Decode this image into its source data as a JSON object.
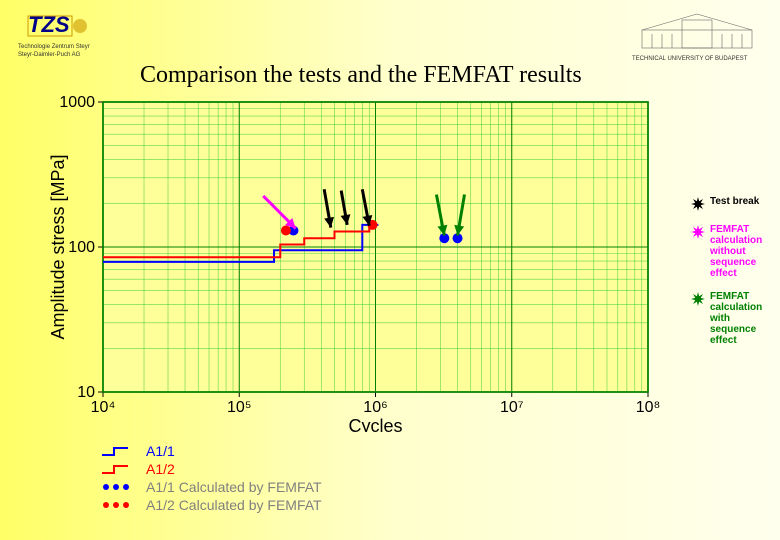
{
  "title": "Comparison the tests and the FEMFAT results",
  "logos": {
    "left_main": "TZS",
    "left_sub": "Technologie Zentrum Steyr\nSteyr-Daimler-Puch AG",
    "right_top": "TECHNICAL UNIVERSITY OF BUDAPEST"
  },
  "chart": {
    "type": "log-log",
    "background": "#ffff99",
    "frame_color": "#008000",
    "xlabel": "Cycles",
    "ylabel": "Amplitude stress [MPa]",
    "label_fontsize": 18,
    "tick_fontsize": 16,
    "xlim": [
      10000,
      100000000
    ],
    "ylim": [
      10,
      1000
    ],
    "xticks": [
      10000,
      100000,
      1000000,
      10000000,
      100000000
    ],
    "xtick_labels": [
      "10⁴",
      "10⁵",
      "10⁶",
      "10⁷",
      "10⁸"
    ],
    "yticks": [
      10,
      100,
      1000
    ],
    "ytick_labels": [
      "10",
      "100",
      "1000"
    ],
    "grid_color": "#33cc33",
    "grid_minor": true,
    "series": {
      "a11": {
        "type": "step-line",
        "color": "#0000ff",
        "width": 2,
        "pts": [
          [
            10000,
            79
          ],
          [
            180000,
            79
          ],
          [
            180000,
            95
          ],
          [
            800000,
            95
          ],
          [
            800000,
            142
          ],
          [
            1050000,
            142
          ]
        ]
      },
      "a12": {
        "type": "step-line",
        "color": "#ff0000",
        "width": 2,
        "pts": [
          [
            10000,
            85
          ],
          [
            200000,
            85
          ],
          [
            200000,
            104
          ],
          [
            300000,
            104
          ],
          [
            300000,
            115
          ],
          [
            500000,
            115
          ],
          [
            500000,
            128
          ],
          [
            900000,
            128
          ],
          [
            900000,
            142
          ],
          [
            1000000,
            142
          ]
        ]
      },
      "a11_calc": {
        "type": "scatter",
        "color": "#0000ff",
        "marker_size": 5,
        "pts": [
          [
            250000,
            130
          ],
          [
            3200000,
            115
          ],
          [
            4000000,
            115
          ]
        ]
      },
      "a12_calc": {
        "type": "scatter",
        "color": "#ff0000",
        "marker_size": 5,
        "pts": [
          [
            220000,
            130
          ],
          [
            950000,
            142
          ]
        ]
      }
    },
    "arrows": [
      {
        "head": [
          260000,
          134
        ],
        "tail": [
          150000,
          225
        ],
        "color": "#ff00ff",
        "width": 3
      },
      {
        "head": [
          470000,
          136
        ],
        "tail": [
          420000,
          250
        ],
        "color": "#000000",
        "width": 3
      },
      {
        "head": [
          620000,
          142
        ],
        "tail": [
          560000,
          245
        ],
        "color": "#000000",
        "width": 3
      },
      {
        "head": [
          900000,
          140
        ],
        "tail": [
          800000,
          250
        ],
        "color": "#000000",
        "width": 3
      },
      {
        "head": [
          3200000,
          120
        ],
        "tail": [
          2800000,
          230
        ],
        "color": "#008000",
        "width": 3
      },
      {
        "head": [
          4000000,
          120
        ],
        "tail": [
          4500000,
          230
        ],
        "color": "#008000",
        "width": 3
      }
    ]
  },
  "side_legend": [
    {
      "label": "Test break",
      "color": "#000000"
    },
    {
      "label": "FEMFAT calculation without sequence effect",
      "color": "#ff00ff"
    },
    {
      "label": "FEMFAT calculation with sequence effect",
      "color": "#008000"
    }
  ],
  "bottom_legend": [
    {
      "label": "A1/1",
      "type": "step",
      "color": "#0000ff"
    },
    {
      "label": "A1/2",
      "type": "step",
      "color": "#ff0000"
    },
    {
      "label": "A1/1 Calculated by FEMFAT",
      "type": "dots",
      "color": "#0000ff",
      "text_color": "#808080"
    },
    {
      "label": "A1/2 Calculated by FEMFAT",
      "type": "dots",
      "color": "#ff0000",
      "text_color": "#808080"
    }
  ]
}
